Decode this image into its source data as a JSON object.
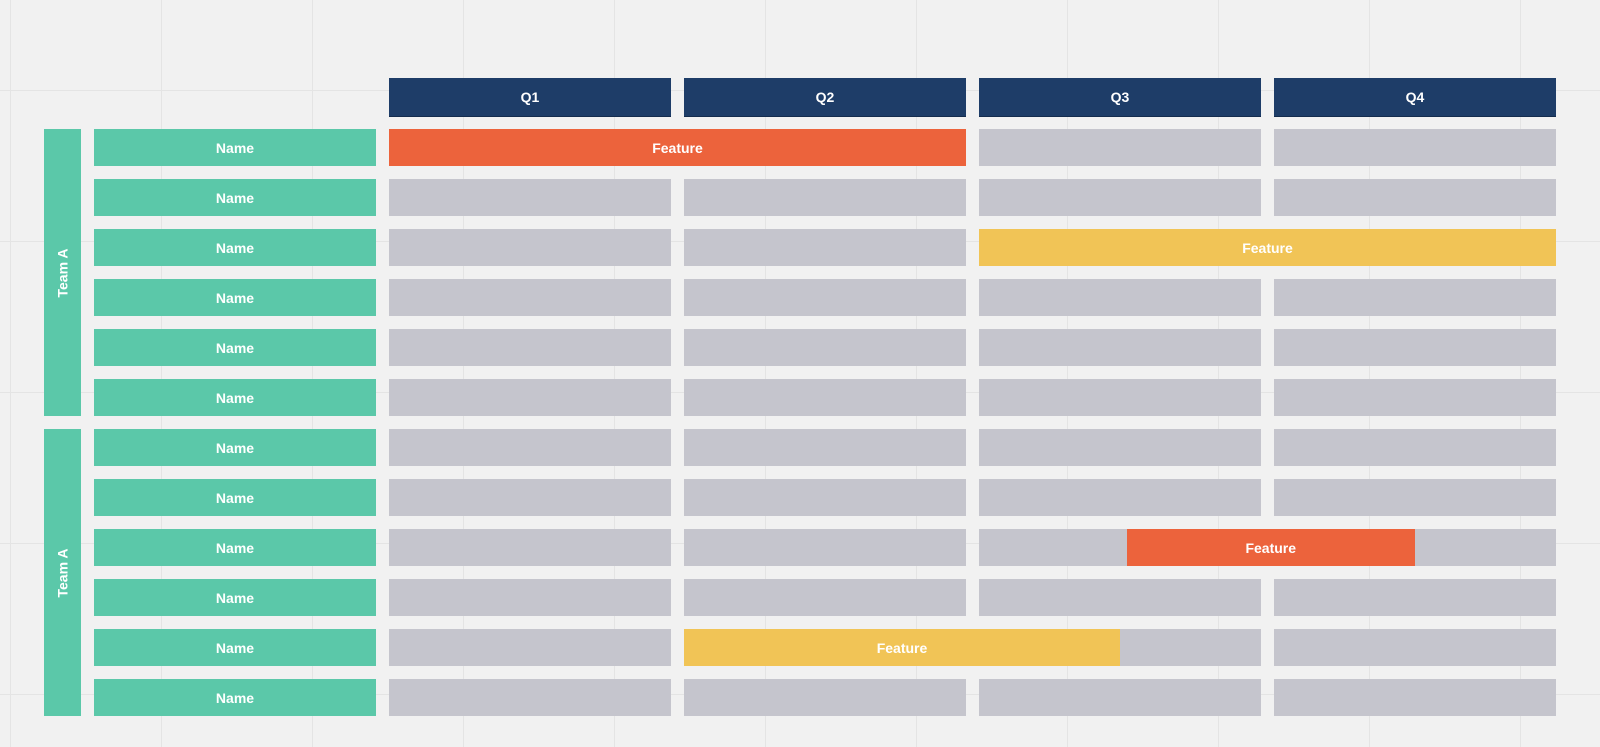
{
  "quarters": [
    "Q1",
    "Q2",
    "Q3",
    "Q4"
  ],
  "teams": [
    {
      "label": "Team A",
      "rows": [
        "Name",
        "Name",
        "Name",
        "Name",
        "Name",
        "Name"
      ]
    },
    {
      "label": "Team A",
      "rows": [
        "Name",
        "Name",
        "Name",
        "Name",
        "Name",
        "Name"
      ]
    }
  ],
  "features": [
    {
      "label": "Feature",
      "color": "#ec633c",
      "row": 0,
      "start_quarter": 1,
      "end_quarter": 2
    },
    {
      "label": "Feature",
      "color": "#f1c456",
      "row": 2,
      "start_quarter": 3,
      "end_quarter": 4
    },
    {
      "label": "Feature",
      "color": "#ec633c",
      "row": 8,
      "start_quarter": 3.5,
      "end_quarter": 4.5
    },
    {
      "label": "Feature",
      "color": "#f1c456",
      "row": 10,
      "start_quarter": 2,
      "end_quarter": 3.5
    }
  ],
  "colors": {
    "header": "#1e3d68",
    "team": "#5bc8a9",
    "slot": "#c5c5cd",
    "orange": "#ec633c",
    "yellow": "#f1c456",
    "background": "#f1f1f1"
  }
}
